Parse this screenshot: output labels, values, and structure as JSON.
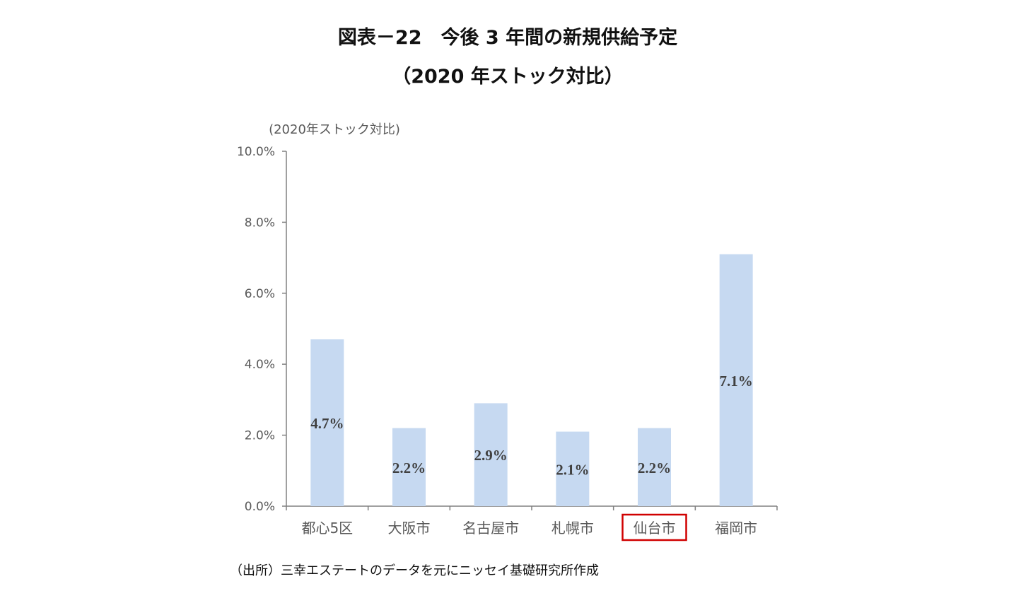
{
  "chart_data": {
    "type": "bar",
    "title": "図表－22　今後 3 年間の新規供給予定",
    "subtitle": "（2020 年ストック対比）",
    "ylabel": "(2020年ストック対比)",
    "categories": [
      "都心5区",
      "大阪市",
      "名古屋市",
      "札幌市",
      "仙台市",
      "福岡市"
    ],
    "values": [
      4.7,
      2.2,
      2.9,
      2.1,
      2.2,
      7.1
    ],
    "data_labels": [
      "4.7%",
      "2.2%",
      "2.9%",
      "2.1%",
      "2.2%",
      "7.1%"
    ],
    "ylim": [
      0,
      10
    ],
    "yticks": [
      "0.0%",
      "2.0%",
      "4.0%",
      "6.0%",
      "8.0%",
      "10.0%"
    ],
    "grid": false,
    "bar_color": "#c6d9f1",
    "highlighted_category": "仙台市",
    "highlight_color": "#d00000",
    "source": "（出所）三幸エステートのデータを元にニッセイ基礎研究所作成"
  }
}
